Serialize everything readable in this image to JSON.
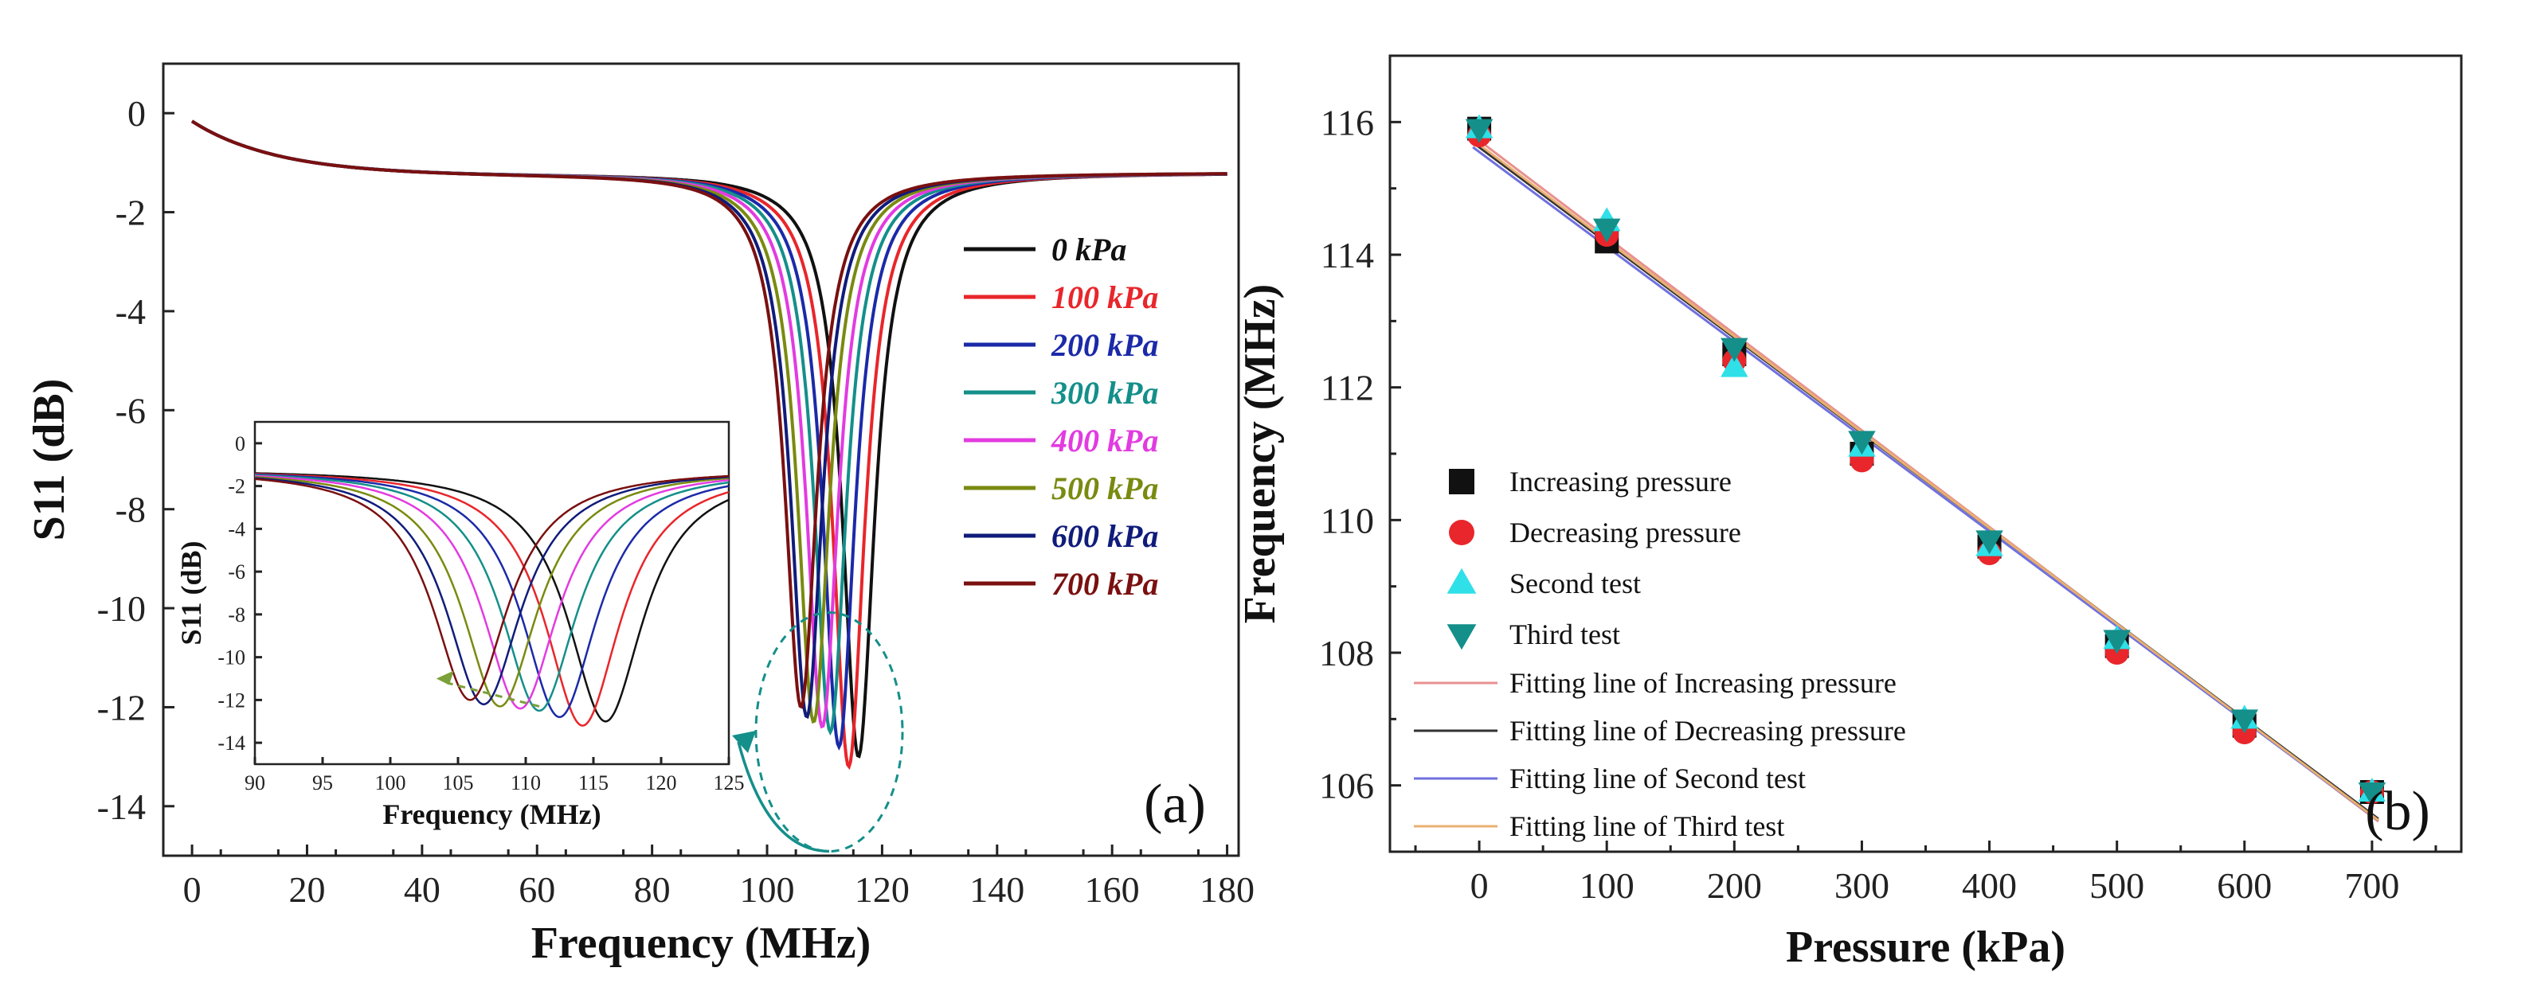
{
  "chart_data": [
    {
      "id": "a",
      "type": "line",
      "panel_label": "(a)",
      "xlabel": "Frequency (MHz)",
      "ylabel": "S11 (dB)",
      "xlim": [
        -5,
        182
      ],
      "ylim": [
        -15,
        1
      ],
      "xticks": [
        0,
        20,
        40,
        60,
        80,
        100,
        120,
        140,
        160,
        180
      ],
      "yticks": [
        0,
        -2,
        -4,
        -6,
        -8,
        -10,
        -12,
        -14
      ],
      "xtick_labels": [
        "0",
        "20",
        "40",
        "60",
        "80",
        "100",
        "120",
        "140",
        "160",
        "180"
      ],
      "ytick_labels": [
        "0",
        "-2",
        "-4",
        "-6",
        "-8",
        "-10",
        "-12",
        "-14"
      ],
      "legend_position": "right",
      "series": [
        {
          "name": "0 kPa",
          "color": "#111111",
          "f0": 115.9,
          "depth": -13.0
        },
        {
          "name": "100 kPa",
          "color": "#e8262b",
          "f0": 114.2,
          "depth": -13.2
        },
        {
          "name": "200 kPa",
          "color": "#1b2aa8",
          "f0": 112.5,
          "depth": -12.8
        },
        {
          "name": "300 kPa",
          "color": "#148f8a",
          "f0": 111.0,
          "depth": -12.5
        },
        {
          "name": "400 kPa",
          "color": "#e23be0",
          "f0": 109.6,
          "depth": -12.4
        },
        {
          "name": "500 kPa",
          "color": "#7a8a10",
          "f0": 108.1,
          "depth": -12.3
        },
        {
          "name": "600 kPa",
          "color": "#101c7a",
          "f0": 106.9,
          "depth": -12.2
        },
        {
          "name": "700 kPa",
          "color": "#7a1010",
          "f0": 105.9,
          "depth": -12.0
        }
      ],
      "inset": {
        "xlabel": "Frequency (MHz)",
        "ylabel": "S11 (dB)",
        "xlim": [
          90,
          125
        ],
        "ylim": [
          -15,
          1
        ],
        "xticks": [
          90,
          95,
          100,
          105,
          110,
          115,
          120,
          125
        ],
        "yticks": [
          0,
          -2,
          -4,
          -6,
          -8,
          -10,
          -12,
          -14
        ],
        "xtick_labels": [
          "90",
          "95",
          "100",
          "105",
          "110",
          "115",
          "120",
          "125"
        ],
        "ytick_labels": [
          "0",
          "-2",
          "-4",
          "-6",
          "-8",
          "-10",
          "-12",
          "-14"
        ]
      }
    },
    {
      "id": "b",
      "type": "scatter",
      "panel_label": "(b)",
      "xlabel": "Pressure (kPa)",
      "ylabel": "Frequency (MHz)",
      "xlim": [
        -70,
        770
      ],
      "ylim": [
        105,
        117
      ],
      "xticks": [
        0,
        100,
        200,
        300,
        400,
        500,
        600,
        700
      ],
      "yticks": [
        106,
        108,
        110,
        112,
        114,
        116
      ],
      "xtick_labels": [
        "0",
        "100",
        "200",
        "300",
        "400",
        "500",
        "600",
        "700"
      ],
      "ytick_labels": [
        "106",
        "108",
        "110",
        "112",
        "114",
        "116"
      ],
      "legend_position": "bottom-left",
      "x": [
        0,
        100,
        200,
        300,
        400,
        500,
        600,
        700
      ],
      "series": [
        {
          "name": "Increasing pressure",
          "marker": "square",
          "color": "#111111",
          "values": [
            115.9,
            114.2,
            112.5,
            111.0,
            109.6,
            108.1,
            106.9,
            105.9
          ]
        },
        {
          "name": "Decreasing pressure",
          "marker": "circle",
          "color": "#e8262b",
          "values": [
            115.8,
            114.3,
            112.4,
            110.9,
            109.5,
            108.0,
            106.8,
            105.9
          ]
        },
        {
          "name": "Second test",
          "marker": "triangle-up",
          "color": "#2fe0e8",
          "values": [
            115.9,
            114.5,
            112.3,
            111.1,
            109.6,
            108.2,
            107.0,
            105.9
          ]
        },
        {
          "name": "Third test",
          "marker": "triangle-down",
          "color": "#148f8a",
          "values": [
            115.9,
            114.4,
            112.6,
            111.2,
            109.7,
            108.2,
            107.0,
            105.9
          ]
        }
      ],
      "fits": [
        {
          "name": "Fitting line of Increasing pressure",
          "color": "#e89090",
          "intercept": 115.72,
          "slope": -0.01456
        },
        {
          "name": "Fitting line of Decreasing pressure",
          "color": "#333333",
          "intercept": 115.62,
          "slope": -0.01436
        },
        {
          "name": "Fitting line of Second test",
          "color": "#7070e0",
          "intercept": 115.55,
          "slope": -0.0143
        },
        {
          "name": "Fitting line of Third test",
          "color": "#e8b070",
          "intercept": 115.66,
          "slope": -0.01445
        }
      ]
    }
  ]
}
